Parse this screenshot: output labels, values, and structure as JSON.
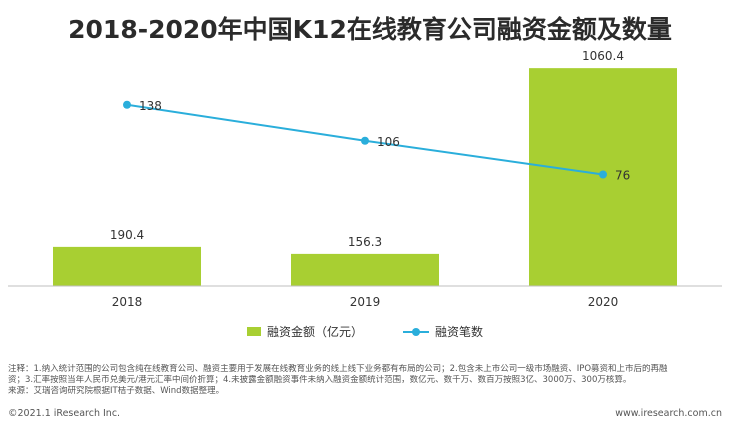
{
  "title": "2018-2020年中国K12在线教育公司融资金额及数量",
  "colors": {
    "bar": "#a8cf32",
    "line": "#2aaedb",
    "axis": "#bfbfbf"
  },
  "chart_data": {
    "type": "bar+line",
    "categories": [
      "2018",
      "2019",
      "2020"
    ],
    "series": [
      {
        "name": "融资金额（亿元）",
        "type": "bar",
        "values": [
          190.4,
          156.3,
          1060.4
        ]
      },
      {
        "name": "融资笔数",
        "type": "line",
        "values": [
          138,
          106,
          76
        ]
      }
    ],
    "ylim_bar": [
      0,
      1100
    ],
    "ylim_line": [
      0,
      160
    ],
    "grid": false,
    "legend_position": "bottom"
  },
  "notes": [
    "注释：1.纳入统计范围的公司包含纯在线教育公司、融资主要用于发展在线教育业务的线上线下业务都有布局的公司；2.包含未上市公司一级市场融资、IPO募资和上市后的再融",
    "资；3.汇率按照当年人民币兑美元/港元汇率中间价折算；4.未披露金额融资事件未纳入融资金额统计范围，数亿元、数千万、数百万按照3亿、3000万、300万核算。",
    "来源：艾瑞咨询研究院根据IT桔子数据、Wind数据整理。"
  ],
  "footer": {
    "left": "©2021.1 iResearch Inc.",
    "right": "www.iresearch.com.cn"
  }
}
